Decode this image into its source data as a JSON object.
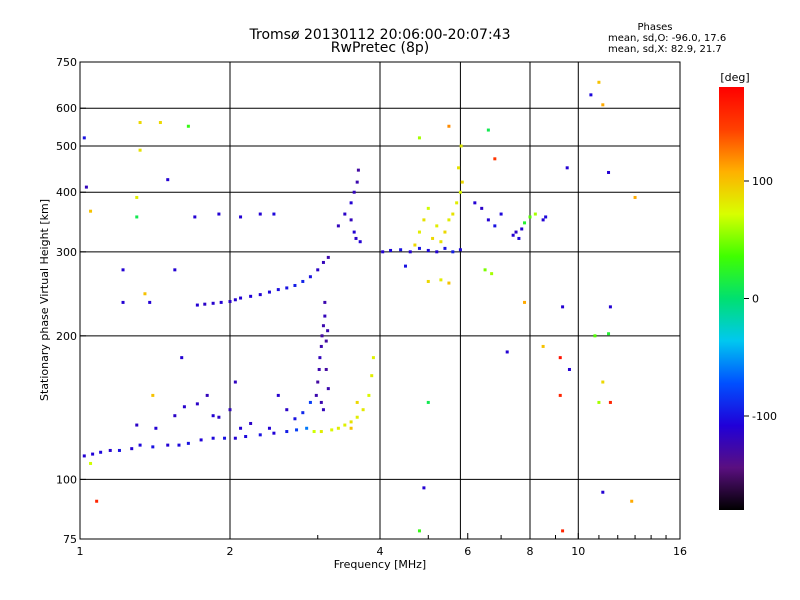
{
  "header": {
    "title_line1": "Tromsø 20130112 20:06:00-20:07:43",
    "title_line2": "RwPretec (8p)",
    "phases_heading": "Phases",
    "stats_o": "mean, sd,O: -96.0, 17.6",
    "stats_x": "mean, sd,X:  82.9, 21.7"
  },
  "chart_data": {
    "type": "scatter",
    "xlabel": "Frequency [MHz]",
    "ylabel": "Stationary phase Virtual Height [km]",
    "x_scale": "log2",
    "y_scale": "log",
    "xlim": [
      1,
      16
    ],
    "ylim": [
      75,
      750
    ],
    "x_ticks": [
      1,
      2,
      4,
      6,
      8,
      10,
      16
    ],
    "x_tick_labels": [
      "1",
      "2",
      "4",
      "6",
      "8",
      "10",
      "16"
    ],
    "x_gridlines": [
      1,
      2,
      4,
      5.8,
      8,
      10,
      16
    ],
    "y_ticks": [
      75,
      100,
      200,
      300,
      400,
      500,
      600,
      750
    ],
    "y_tick_labels": [
      "75",
      "100",
      "200",
      "300",
      "400",
      "500",
      "600",
      "750"
    ],
    "y_gridlines": [
      100,
      200,
      300,
      400,
      500,
      600
    ],
    "grid": true,
    "colorbar": {
      "label": "[deg]",
      "range": [
        -180,
        180
      ],
      "ticks": [
        100,
        0,
        -100
      ],
      "tick_labels": [
        "100",
        "0",
        "-100"
      ],
      "colors": [
        "#000000",
        "#5a0f80",
        "#2000d8",
        "#0050ff",
        "#00c8f0",
        "#00e070",
        "#40ff00",
        "#d8ff00",
        "#ffb000",
        "#ff4000",
        "#ff0000"
      ]
    },
    "series": [
      {
        "points": [
          [
            1.02,
            112,
            -110
          ],
          [
            1.06,
            113,
            -108
          ],
          [
            1.1,
            114,
            -105
          ],
          [
            1.15,
            115,
            -112
          ],
          [
            1.2,
            115,
            -100
          ],
          [
            1.27,
            116,
            -110
          ],
          [
            1.32,
            118,
            -105
          ],
          [
            1.4,
            117,
            -100
          ],
          [
            1.5,
            118,
            -110
          ],
          [
            1.58,
            118,
            -105
          ],
          [
            1.65,
            119,
            -100
          ],
          [
            1.75,
            121,
            -108
          ],
          [
            1.85,
            122,
            -105
          ],
          [
            1.95,
            122,
            -100
          ],
          [
            2.05,
            122,
            -110
          ],
          [
            2.15,
            123,
            -105
          ],
          [
            2.3,
            124,
            -100
          ],
          [
            2.45,
            125,
            -108
          ],
          [
            2.6,
            126,
            -95
          ],
          [
            2.72,
            127,
            -80
          ],
          [
            2.85,
            128,
            -60
          ]
        ]
      },
      {
        "points": [
          [
            1.3,
            130,
            -115
          ],
          [
            1.42,
            128,
            -110
          ],
          [
            1.55,
            136,
            -115
          ],
          [
            1.62,
            142,
            -112
          ],
          [
            1.72,
            144,
            -115
          ],
          [
            1.8,
            150,
            -120
          ],
          [
            1.85,
            136,
            -110
          ],
          [
            1.9,
            135,
            -115
          ],
          [
            2.0,
            140,
            -118
          ],
          [
            2.05,
            160,
            -118
          ],
          [
            2.1,
            128,
            -110
          ],
          [
            2.2,
            131,
            -115
          ],
          [
            2.4,
            128,
            -110
          ],
          [
            2.5,
            150,
            -112
          ],
          [
            2.6,
            140,
            -115
          ],
          [
            2.7,
            134,
            -100
          ],
          [
            2.8,
            138,
            -90
          ],
          [
            2.9,
            145,
            -80
          ]
        ]
      },
      {
        "points": [
          [
            1.72,
            232,
            -110
          ],
          [
            1.78,
            233,
            -115
          ],
          [
            1.85,
            234,
            -112
          ],
          [
            1.92,
            235,
            -110
          ],
          [
            2.0,
            236,
            -115
          ],
          [
            2.05,
            238,
            -112
          ],
          [
            2.1,
            240,
            -110
          ],
          [
            2.2,
            242,
            -108
          ],
          [
            2.3,
            244,
            -110
          ],
          [
            2.4,
            247,
            -105
          ],
          [
            2.5,
            250,
            -102
          ],
          [
            2.6,
            252,
            -100
          ],
          [
            2.7,
            255,
            -95
          ],
          [
            2.8,
            260,
            -92
          ],
          [
            2.9,
            266,
            -100
          ],
          [
            3.0,
            275,
            -115
          ],
          [
            3.08,
            285,
            -120
          ],
          [
            3.15,
            292,
            -125
          ]
        ]
      },
      {
        "points": [
          [
            2.98,
            150,
            -125
          ],
          [
            3.0,
            160,
            -130
          ],
          [
            3.02,
            170,
            -125
          ],
          [
            3.03,
            180,
            -120
          ],
          [
            3.05,
            190,
            -125
          ],
          [
            3.06,
            200,
            -130
          ],
          [
            3.08,
            210,
            -125
          ],
          [
            3.1,
            220,
            -120
          ],
          [
            3.1,
            235,
            -125
          ],
          [
            3.12,
            170,
            -130
          ],
          [
            3.15,
            155,
            -125
          ],
          [
            3.08,
            140,
            -120
          ],
          [
            3.05,
            145,
            -125
          ],
          [
            3.12,
            195,
            -130
          ],
          [
            3.14,
            205,
            -125
          ]
        ]
      },
      {
        "points": [
          [
            2.95,
            126,
            70
          ],
          [
            3.05,
            126,
            80
          ],
          [
            3.2,
            127,
            75
          ],
          [
            3.3,
            128,
            80
          ],
          [
            3.4,
            130,
            78
          ],
          [
            3.5,
            132,
            85
          ],
          [
            3.6,
            135,
            80
          ],
          [
            3.7,
            140,
            82
          ],
          [
            3.8,
            150,
            75
          ],
          [
            3.85,
            165,
            80
          ],
          [
            3.88,
            180,
            78
          ],
          [
            3.5,
            128,
            100
          ],
          [
            3.6,
            145,
            90
          ]
        ]
      },
      {
        "points": [
          [
            3.3,
            340,
            -120
          ],
          [
            3.4,
            360,
            -115
          ],
          [
            3.5,
            380,
            -110
          ],
          [
            3.55,
            400,
            -120
          ],
          [
            3.6,
            420,
            -125
          ],
          [
            3.62,
            445,
            -130
          ],
          [
            3.58,
            320,
            -115
          ],
          [
            3.65,
            315,
            -110
          ],
          [
            3.5,
            350,
            -120
          ],
          [
            3.55,
            330,
            -110
          ]
        ]
      },
      {
        "points": [
          [
            4.05,
            300,
            -110
          ],
          [
            4.2,
            302,
            -105
          ],
          [
            4.4,
            303,
            -100
          ],
          [
            4.6,
            300,
            -110
          ],
          [
            4.8,
            305,
            -100
          ],
          [
            5.0,
            302,
            -105
          ],
          [
            5.2,
            300,
            -110
          ],
          [
            5.4,
            305,
            -100
          ],
          [
            5.6,
            300,
            -95
          ],
          [
            5.8,
            303,
            -105
          ]
        ]
      },
      {
        "points": [
          [
            4.7,
            310,
            90
          ],
          [
            4.8,
            330,
            80
          ],
          [
            4.9,
            350,
            85
          ],
          [
            5.0,
            370,
            70
          ],
          [
            5.1,
            320,
            90
          ],
          [
            5.2,
            340,
            80
          ],
          [
            5.3,
            315,
            85
          ],
          [
            5.4,
            330,
            90
          ],
          [
            5.5,
            350,
            80
          ],
          [
            5.6,
            360,
            85
          ],
          [
            5.7,
            380,
            80
          ],
          [
            5.8,
            400,
            75
          ],
          [
            5.85,
            420,
            90
          ],
          [
            5.75,
            450,
            85
          ],
          [
            5.82,
            500,
            80
          ]
        ]
      },
      {
        "points": [
          [
            6.2,
            380,
            -110
          ],
          [
            6.4,
            370,
            -115
          ],
          [
            6.6,
            350,
            -110
          ],
          [
            6.8,
            340,
            -100
          ],
          [
            7.0,
            360,
            -105
          ],
          [
            7.4,
            325,
            -110
          ],
          [
            7.5,
            330,
            -115
          ],
          [
            7.6,
            320,
            -105
          ],
          [
            7.7,
            335,
            -110
          ],
          [
            7.8,
            345,
            20
          ],
          [
            8.0,
            355,
            40
          ],
          [
            8.2,
            360,
            60
          ],
          [
            8.5,
            350,
            -110
          ],
          [
            8.6,
            355,
            -105
          ]
        ]
      },
      {
        "points": [
          [
            4.5,
            280,
            -100
          ],
          [
            5.0,
            260,
            90
          ],
          [
            5.3,
            262,
            80
          ],
          [
            5.5,
            258,
            100
          ],
          [
            6.5,
            275,
            50
          ],
          [
            6.7,
            270,
            60
          ],
          [
            4.8,
            520,
            60
          ],
          [
            5.5,
            550,
            120
          ],
          [
            6.6,
            540,
            10
          ],
          [
            6.8,
            470,
            150
          ],
          [
            7.2,
            185,
            -110
          ],
          [
            7.8,
            235,
            110
          ],
          [
            8.5,
            190,
            100
          ],
          [
            9.2,
            180,
            170
          ],
          [
            9.2,
            150,
            160
          ],
          [
            9.5,
            450,
            -110
          ],
          [
            9.3,
            230,
            -110
          ],
          [
            9.6,
            170,
            -110
          ],
          [
            10.6,
            640,
            -105
          ],
          [
            11.0,
            680,
            100
          ],
          [
            11.2,
            610,
            110
          ],
          [
            11.5,
            440,
            -110
          ],
          [
            11.2,
            160,
            90
          ],
          [
            11.6,
            145,
            160
          ],
          [
            11.6,
            230,
            -110
          ],
          [
            11.0,
            145,
            60
          ],
          [
            10.8,
            200,
            40
          ],
          [
            11.5,
            202,
            20
          ],
          [
            11.2,
            94,
            -110
          ],
          [
            12.8,
            90,
            110
          ],
          [
            13.0,
            390,
            110
          ],
          [
            9.3,
            78,
            160
          ],
          [
            4.9,
            96,
            -110
          ],
          [
            4.8,
            78,
            30
          ],
          [
            5.0,
            145,
            10
          ]
        ]
      },
      {
        "points": [
          [
            1.02,
            520,
            -100
          ],
          [
            1.03,
            410,
            -120
          ],
          [
            1.05,
            365,
            100
          ],
          [
            1.05,
            108,
            70
          ],
          [
            1.08,
            90,
            160
          ],
          [
            1.22,
            275,
            -110
          ],
          [
            1.22,
            235,
            -110
          ],
          [
            1.3,
            355,
            10
          ],
          [
            1.3,
            390,
            80
          ],
          [
            1.32,
            560,
            90
          ],
          [
            1.32,
            490,
            85
          ],
          [
            1.35,
            245,
            100
          ],
          [
            1.38,
            235,
            -110
          ],
          [
            1.4,
            150,
            100
          ],
          [
            1.45,
            560,
            90
          ],
          [
            1.5,
            425,
            -110
          ],
          [
            1.55,
            275,
            -110
          ],
          [
            1.6,
            180,
            -110
          ],
          [
            1.65,
            550,
            30
          ],
          [
            1.7,
            355,
            -110
          ],
          [
            1.9,
            360,
            -110
          ],
          [
            2.1,
            355,
            -110
          ],
          [
            2.3,
            360,
            -110
          ],
          [
            2.45,
            360,
            -105
          ]
        ]
      }
    ]
  }
}
